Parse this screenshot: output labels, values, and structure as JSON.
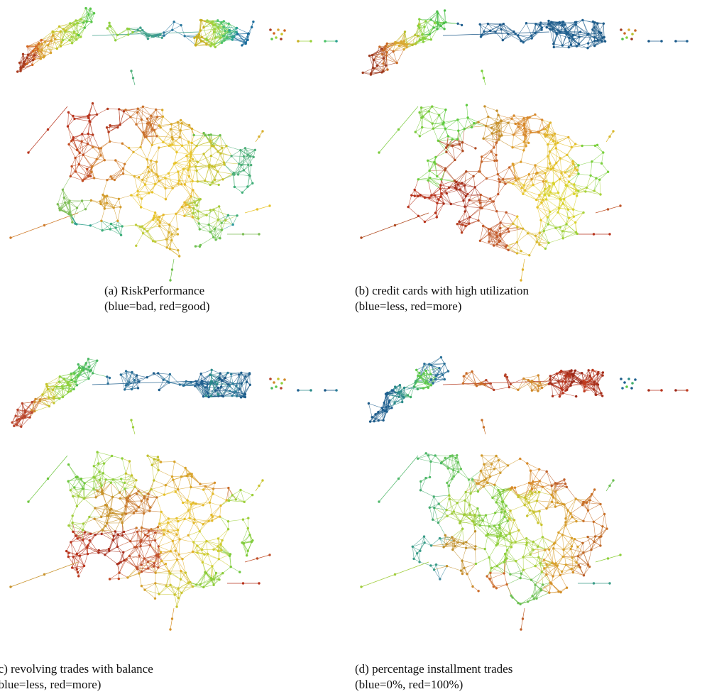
{
  "panels": [
    {
      "id": "a",
      "caption_line1": "(a) RiskPerformance",
      "caption_line2": "(blue=bad, red=good)",
      "scale": {
        "low": "bad",
        "high": "good"
      },
      "regions": {
        "strip_left": [
          "#a83a1e",
          "#d2661f",
          "#d9a22e",
          "#c8c227",
          "#9fd23a",
          "#59c74a"
        ],
        "strip_bridge": [
          "#8fcf3e",
          "#3fa08a",
          "#2d7aa0"
        ],
        "strip_right": [
          "#c8b020",
          "#9ad23c",
          "#4ec36a",
          "#2ba090",
          "#1c6d9c"
        ],
        "main": [
          [
            "#b8331c",
            "#b33a1e",
            "#c9702a",
            "#d8a829",
            "#6dc04a",
            "#2e9aa0"
          ],
          [
            "#c14a1f",
            "#cf7b2a",
            "#e0b22c",
            "#e8c42c",
            "#c8c22e",
            "#4fb07a"
          ],
          [
            "#7dbd55",
            "#d29b2b",
            "#e7c32a",
            "#e5b82a",
            "#a8cc3a",
            "#3fae78"
          ],
          [
            "#2fa08c",
            "#3cae7a",
            "#bfcc3b",
            "#d8b02e",
            "#6fc252",
            "#2f9aa0"
          ]
        ]
      }
    },
    {
      "id": "b",
      "caption_line1": "(b) credit cards with high utilization",
      "caption_line2": "(blue=less, red=more)",
      "scale": {
        "low": "less",
        "high": "more"
      },
      "regions": {
        "strip_left": [
          "#9e3a1e",
          "#c86a26",
          "#d9a830",
          "#b6c02c",
          "#86d23c",
          "#4dc04a"
        ],
        "strip_bridge": [
          "#1f5f8f",
          "#1e5a8a",
          "#1f5f8f"
        ],
        "strip_right": [
          "#1c5a88",
          "#1e5e8e",
          "#1d5c8c",
          "#1f6090",
          "#1c5a88"
        ],
        "main": [
          [
            "#7acb3c",
            "#5ecb3e",
            "#c7902a",
            "#d7882a",
            "#e0b22c",
            "#a6cf3a"
          ],
          [
            "#6ccc3c",
            "#b04a20",
            "#c66428",
            "#dc9c2a",
            "#e3c02a",
            "#7ad03c"
          ],
          [
            "#b8331c",
            "#a8301c",
            "#c0562a",
            "#e6c42a",
            "#d9d22c",
            "#a8d23a"
          ],
          [
            "#c03a1e",
            "#b84022",
            "#c25a2a",
            "#d9b82e",
            "#9ed03a",
            "#2f8c9c"
          ]
        ]
      }
    },
    {
      "id": "c",
      "caption_line1": "(c) revolving trades with balance",
      "caption_line2": "(blue=less, red=more)",
      "scale": {
        "low": "less",
        "high": "more"
      },
      "regions": {
        "strip_left": [
          "#b8442a",
          "#d18a2c",
          "#c5c42c",
          "#8fd03c",
          "#5cc84a",
          "#4ab860"
        ],
        "strip_bridge": [
          "#2a7098",
          "#1e5e8c",
          "#2a7098"
        ],
        "strip_right": [
          "#1f6090",
          "#2a8a8a",
          "#1c5a88",
          "#2a7c98",
          "#1e5e8c"
        ],
        "main": [
          [
            "#6cc63c",
            "#8fd03c",
            "#c2c22e",
            "#d8a42a",
            "#d7922a",
            "#c86c28"
          ],
          [
            "#9fcc3a",
            "#c8922a",
            "#c8782a",
            "#e6c02a",
            "#e3b82a",
            "#9ccf3a"
          ],
          [
            "#b8331c",
            "#a82e1c",
            "#c0502a",
            "#e2b02a",
            "#cfcc30",
            "#7fcc3a"
          ],
          [
            "#b83a1e",
            "#c0461f",
            "#d4a02c",
            "#c9c42e",
            "#8ccc3a",
            "#6cc63c"
          ]
        ]
      }
    },
    {
      "id": "d",
      "caption_line1": "(d) percentage installment trades",
      "caption_line2": "(blue=0%, red=100%)",
      "scale": {
        "low": "0%",
        "high": "100%"
      },
      "regions": {
        "strip_left": [
          "#1c5a88",
          "#1f6090",
          "#2a8a8a",
          "#3fae6a",
          "#5cc84a",
          "#2a7098"
        ],
        "strip_bridge": [
          "#c86a26",
          "#b8442a",
          "#d18a2c"
        ],
        "strip_right": [
          "#a8301c",
          "#b8331c",
          "#9e2a1a",
          "#c03a1e",
          "#a8301c"
        ],
        "main": [
          [
            "#4fb86a",
            "#66c45a",
            "#d09a2c",
            "#d78a2a",
            "#c0602a",
            "#b8502a"
          ],
          [
            "#46ac72",
            "#9fcc3a",
            "#7ccb3c",
            "#c9c42e",
            "#d59a2c",
            "#c87028"
          ],
          [
            "#3a9c88",
            "#c0902c",
            "#8ecf3c",
            "#a6cf3a",
            "#d8a02c",
            "#c06a28"
          ],
          [
            "#3f8aa0",
            "#c98a2a",
            "#cc6a28",
            "#6cc052",
            "#d4902a",
            "#b85a2a"
          ]
        ]
      }
    }
  ]
}
